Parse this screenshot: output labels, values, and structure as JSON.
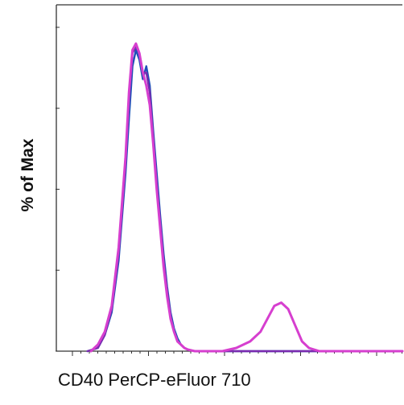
{
  "chart_data": {
    "type": "line",
    "title": "",
    "xlabel": "CD40 PerCP-eFluor 710",
    "ylabel": "% of Max",
    "xlim": [
      0,
      100
    ],
    "ylim": [
      0,
      100
    ],
    "grid": false,
    "legend": "none",
    "series": [
      {
        "color": "#1f4fb8",
        "x": [
          9,
          12,
          14,
          16,
          18,
          20,
          21,
          22,
          23,
          24,
          25,
          26,
          27,
          28,
          29,
          30,
          31,
          32,
          33,
          34,
          35,
          36,
          37,
          38,
          40,
          42,
          44,
          46,
          100
        ],
        "y": [
          0,
          1,
          5,
          12,
          28,
          55,
          72,
          88,
          93,
          90,
          84,
          88,
          82,
          68,
          55,
          42,
          30,
          20,
          12,
          7,
          4,
          2,
          1,
          0.5,
          0,
          0,
          0,
          0,
          0
        ]
      },
      {
        "color": "#7a2bb0",
        "x": [
          9,
          12,
          14,
          16,
          18,
          20,
          21,
          22,
          23,
          24,
          25,
          26,
          27,
          28,
          29,
          30,
          31,
          32,
          33,
          34,
          35,
          36,
          37,
          38,
          40,
          42,
          44,
          46,
          100
        ],
        "y": [
          0,
          1,
          5,
          13,
          30,
          58,
          78,
          92,
          94,
          92,
          86,
          86,
          80,
          66,
          52,
          40,
          28,
          19,
          11,
          6,
          3,
          2,
          1,
          0.5,
          0,
          0,
          0,
          0,
          0
        ]
      },
      {
        "color": "#d63fcf",
        "x": [
          10,
          12,
          14,
          16,
          18,
          20,
          21,
          22,
          23,
          24,
          25,
          26,
          27,
          28,
          29,
          30,
          31,
          32,
          33,
          34,
          35,
          36,
          37,
          38,
          40,
          48,
          52,
          56,
          59,
          61,
          63,
          65,
          67,
          69,
          71,
          73,
          76,
          80,
          100
        ],
        "y": [
          0,
          2,
          6,
          14,
          32,
          60,
          80,
          93,
          95,
          92,
          86,
          82,
          76,
          64,
          50,
          38,
          26,
          17,
          10,
          6,
          3,
          2,
          1,
          0.5,
          0,
          0,
          1,
          3,
          6,
          10,
          14,
          15,
          13,
          8,
          3,
          1,
          0,
          0,
          0
        ]
      }
    ]
  }
}
